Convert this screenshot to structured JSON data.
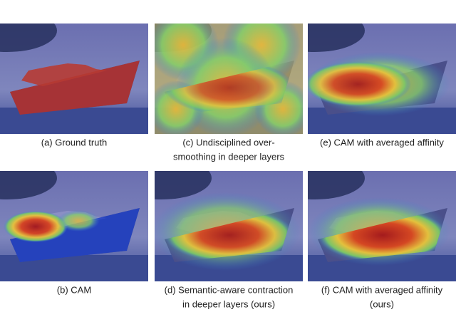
{
  "panels": [
    {
      "caption": [
        "(a) Ground truth"
      ]
    },
    {
      "caption": [
        "(c) Undisciplined over-",
        "smoothing in deeper layers"
      ]
    },
    {
      "caption": [
        "(e) CAM with averaged affinity"
      ]
    },
    {
      "caption": [
        "(b) CAM"
      ]
    },
    {
      "caption": [
        "(d) Semantic-aware contraction",
        "in deeper layers (ours)"
      ]
    },
    {
      "caption": [
        "(f) CAM with averaged affinity",
        "(ours)"
      ]
    }
  ]
}
